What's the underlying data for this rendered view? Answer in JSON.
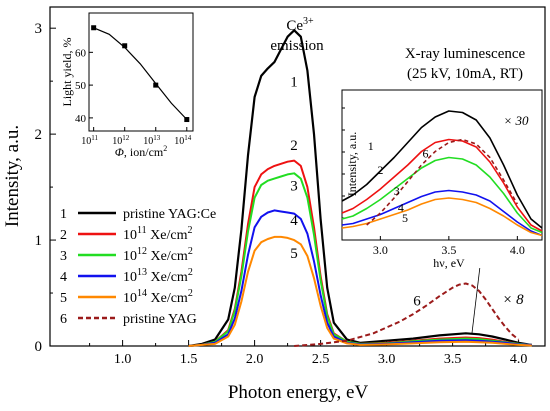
{
  "chart_data": [
    {
      "type": "line",
      "panel": "main",
      "xlabel": "Photon energy, eV",
      "ylabel": "Intensity, a.u.",
      "xlim": [
        0.45,
        4.2
      ],
      "ylim": [
        0,
        3.2
      ],
      "x_ticks": [
        {
          "v": 1.0,
          "label": "1.0"
        },
        {
          "v": 1.5,
          "label": "1.5"
        },
        {
          "v": 2.0,
          "label": "2.0"
        },
        {
          "v": 2.5,
          "label": "2.5"
        },
        {
          "v": 3.0,
          "label": "3.0"
        },
        {
          "v": 3.5,
          "label": "3.5"
        },
        {
          "v": 4.0,
          "label": "4.0"
        }
      ],
      "y_ticks": [
        {
          "v": 0,
          "label": "0"
        },
        {
          "v": 1,
          "label": "1"
        },
        {
          "v": 2,
          "label": "2"
        },
        {
          "v": 3,
          "label": "3"
        }
      ],
      "annotations": {
        "emission_ion": "Ce",
        "emission_charge": "3+",
        "emission_word": "emission",
        "scale_label": "× 8"
      },
      "curve_labels": [
        "1",
        "2",
        "3",
        "4",
        "5",
        "6"
      ],
      "legend": [
        {
          "num": "1",
          "text": "pristine YAG:Ce",
          "color": "#000000",
          "dash": false
        },
        {
          "num": "2",
          "base": "10",
          "exp": "11",
          "unit": " Xe/cm",
          "unit_exp": "2",
          "color": "#ee1111",
          "dash": false
        },
        {
          "num": "3",
          "base": "10",
          "exp": "12",
          "unit": " Xe/cm",
          "unit_exp": "2",
          "color": "#22dd22",
          "dash": false
        },
        {
          "num": "4",
          "base": "10",
          "exp": "13",
          "unit": " Xe/cm",
          "unit_exp": "2",
          "color": "#1111ee",
          "dash": false
        },
        {
          "num": "5",
          "base": "10",
          "exp": "14",
          "unit": " Xe/cm",
          "unit_exp": "2",
          "color": "#ff8800",
          "dash": false
        },
        {
          "num": "6",
          "text": "pristine YAG",
          "color": "#9b1b1b",
          "dash": true
        }
      ],
      "series": [
        {
          "id": "1",
          "color": "#000000",
          "width": 2.2,
          "dash": false,
          "x": [
            1.5,
            1.6,
            1.7,
            1.8,
            1.85,
            1.9,
            1.95,
            2.0,
            2.05,
            2.1,
            2.15,
            2.2,
            2.25,
            2.3,
            2.35,
            2.4,
            2.45,
            2.5,
            2.55,
            2.6,
            2.7,
            2.8,
            3.0,
            3.2,
            3.4,
            3.6,
            3.7,
            3.8,
            3.9,
            4.0,
            4.1
          ],
          "y": [
            0.0,
            0.02,
            0.06,
            0.25,
            0.55,
            1.1,
            1.8,
            2.35,
            2.55,
            2.62,
            2.68,
            2.8,
            2.92,
            2.98,
            2.92,
            2.6,
            2.0,
            1.2,
            0.55,
            0.22,
            0.06,
            0.03,
            0.05,
            0.07,
            0.1,
            0.12,
            0.11,
            0.09,
            0.06,
            0.03,
            0.01
          ]
        },
        {
          "id": "2",
          "color": "#ee1111",
          "width": 2,
          "dash": false,
          "x": [
            1.5,
            1.6,
            1.7,
            1.8,
            1.85,
            1.9,
            1.95,
            2.0,
            2.05,
            2.1,
            2.15,
            2.2,
            2.25,
            2.3,
            2.35,
            2.4,
            2.45,
            2.5,
            2.55,
            2.6,
            2.7,
            2.8,
            3.0,
            3.2,
            3.4,
            3.6,
            3.7,
            3.8,
            3.9,
            4.0,
            4.1
          ],
          "y": [
            0.0,
            0.01,
            0.04,
            0.15,
            0.35,
            0.7,
            1.15,
            1.5,
            1.62,
            1.67,
            1.7,
            1.72,
            1.74,
            1.75,
            1.7,
            1.5,
            1.12,
            0.66,
            0.3,
            0.12,
            0.04,
            0.02,
            0.03,
            0.05,
            0.07,
            0.08,
            0.075,
            0.06,
            0.04,
            0.02,
            0.01
          ]
        },
        {
          "id": "3",
          "color": "#22dd22",
          "width": 2,
          "dash": false,
          "x": [
            1.5,
            1.6,
            1.7,
            1.8,
            1.85,
            1.9,
            1.95,
            2.0,
            2.05,
            2.1,
            2.15,
            2.2,
            2.25,
            2.3,
            2.35,
            2.4,
            2.45,
            2.5,
            2.55,
            2.6,
            2.7,
            2.8,
            3.0,
            3.2,
            3.4,
            3.6,
            3.7,
            3.8,
            3.9,
            4.0,
            4.1
          ],
          "y": [
            0.0,
            0.01,
            0.04,
            0.14,
            0.33,
            0.66,
            1.08,
            1.4,
            1.52,
            1.56,
            1.58,
            1.6,
            1.62,
            1.63,
            1.58,
            1.4,
            1.05,
            0.62,
            0.28,
            0.11,
            0.04,
            0.02,
            0.025,
            0.045,
            0.06,
            0.07,
            0.065,
            0.05,
            0.035,
            0.02,
            0.01
          ]
        },
        {
          "id": "4",
          "color": "#1111ee",
          "width": 2,
          "dash": false,
          "x": [
            1.5,
            1.6,
            1.7,
            1.8,
            1.85,
            1.9,
            1.95,
            2.0,
            2.05,
            2.1,
            2.15,
            2.2,
            2.25,
            2.3,
            2.35,
            2.4,
            2.45,
            2.5,
            2.55,
            2.6,
            2.7,
            2.8,
            3.0,
            3.2,
            3.4,
            3.6,
            3.7,
            3.8,
            3.9,
            4.0,
            4.1
          ],
          "y": [
            0.0,
            0.01,
            0.03,
            0.11,
            0.26,
            0.52,
            0.86,
            1.12,
            1.22,
            1.26,
            1.28,
            1.27,
            1.26,
            1.25,
            1.2,
            1.06,
            0.8,
            0.48,
            0.22,
            0.09,
            0.03,
            0.015,
            0.02,
            0.035,
            0.05,
            0.055,
            0.05,
            0.04,
            0.03,
            0.015,
            0.01
          ]
        },
        {
          "id": "5",
          "color": "#ff8800",
          "width": 2,
          "dash": false,
          "x": [
            1.5,
            1.6,
            1.7,
            1.8,
            1.85,
            1.9,
            1.95,
            2.0,
            2.05,
            2.1,
            2.15,
            2.2,
            2.25,
            2.3,
            2.35,
            2.4,
            2.45,
            2.5,
            2.55,
            2.6,
            2.7,
            2.8,
            3.0,
            3.2,
            3.4,
            3.6,
            3.7,
            3.8,
            3.9,
            4.0,
            4.1
          ],
          "y": [
            0.0,
            0.01,
            0.02,
            0.09,
            0.2,
            0.42,
            0.7,
            0.9,
            0.98,
            1.01,
            1.03,
            1.03,
            1.02,
            1.0,
            0.96,
            0.85,
            0.64,
            0.38,
            0.17,
            0.07,
            0.025,
            0.01,
            0.015,
            0.025,
            0.035,
            0.04,
            0.035,
            0.03,
            0.02,
            0.01,
            0.005
          ]
        },
        {
          "id": "6",
          "color": "#9b1b1b",
          "width": 2,
          "dash": true,
          "x": [
            2.3,
            2.5,
            2.7,
            2.9,
            3.1,
            3.2,
            3.3,
            3.4,
            3.5,
            3.55,
            3.6,
            3.65,
            3.7,
            3.75,
            3.8,
            3.85,
            3.9,
            3.95,
            4.0
          ],
          "y": [
            0.0,
            0.02,
            0.05,
            0.12,
            0.23,
            0.3,
            0.38,
            0.47,
            0.55,
            0.58,
            0.59,
            0.57,
            0.52,
            0.44,
            0.35,
            0.26,
            0.18,
            0.11,
            0.06
          ]
        }
      ]
    },
    {
      "type": "scatter",
      "panel": "inset-left",
      "xlabel_symbol": "Φ",
      "xlabel_unit": ", ion/cm",
      "xlabel_exp": "2",
      "ylabel": "Light yield, %",
      "x_log": true,
      "xlim_log10": [
        10.85,
        14.2
      ],
      "ylim": [
        36,
        72
      ],
      "x_ticks": [
        {
          "exp": 11,
          "base": "10",
          "sup": "11"
        },
        {
          "exp": 12,
          "base": "10",
          "sup": "12"
        },
        {
          "exp": 13,
          "base": "10",
          "sup": "13"
        },
        {
          "exp": 14,
          "base": "10",
          "sup": "14"
        }
      ],
      "y_ticks": [
        {
          "v": 40,
          "label": "40"
        },
        {
          "v": 50,
          "label": "50"
        },
        {
          "v": 60,
          "label": "60"
        }
      ],
      "points": [
        {
          "x_log10": 11,
          "y": 67.5
        },
        {
          "x_log10": 12,
          "y": 62
        },
        {
          "x_log10": 13,
          "y": 50
        },
        {
          "x_log10": 14,
          "y": 39.5
        }
      ],
      "fit_curve": {
        "x_log10": [
          11.0,
          11.5,
          12.0,
          12.5,
          13.0,
          13.5,
          14.0
        ],
        "y": [
          67.5,
          65.5,
          61.5,
          56.5,
          50.5,
          44.5,
          39.5
        ]
      }
    },
    {
      "type": "line",
      "panel": "inset-right",
      "title_line1": "X-ray luminescence",
      "title_line2": "(25 kV, 10mA, RT)",
      "xlabel": "hν, eV",
      "ylabel": "Intensity, a.u.",
      "scale_label": "× 30",
      "xlim": [
        2.72,
        4.18
      ],
      "ylim": [
        0,
        1.0
      ],
      "x_ticks": [
        {
          "v": 3.0,
          "label": "3.0"
        },
        {
          "v": 3.5,
          "label": "3.5"
        },
        {
          "v": 4.0,
          "label": "4.0"
        }
      ],
      "curve_labels": [
        "1",
        "2",
        "3",
        "4",
        "5",
        "6"
      ],
      "series": [
        {
          "id": "1",
          "color": "#000000",
          "dash": false,
          "x": [
            2.72,
            2.8,
            2.9,
            3.0,
            3.1,
            3.2,
            3.3,
            3.4,
            3.5,
            3.6,
            3.7,
            3.8,
            3.9,
            4.0,
            4.1,
            4.18
          ],
          "y": [
            0.26,
            0.3,
            0.37,
            0.46,
            0.55,
            0.65,
            0.75,
            0.82,
            0.86,
            0.85,
            0.8,
            0.68,
            0.5,
            0.3,
            0.14,
            0.08
          ]
        },
        {
          "id": "2",
          "color": "#ee1111",
          "dash": false,
          "x": [
            2.72,
            2.8,
            2.9,
            3.0,
            3.1,
            3.2,
            3.3,
            3.4,
            3.5,
            3.6,
            3.7,
            3.8,
            3.9,
            4.0,
            4.1,
            4.18
          ],
          "y": [
            0.18,
            0.21,
            0.27,
            0.34,
            0.42,
            0.5,
            0.59,
            0.65,
            0.67,
            0.66,
            0.62,
            0.52,
            0.38,
            0.22,
            0.1,
            0.06
          ]
        },
        {
          "id": "3",
          "color": "#22dd22",
          "dash": false,
          "x": [
            2.72,
            2.8,
            2.9,
            3.0,
            3.1,
            3.2,
            3.3,
            3.4,
            3.5,
            3.6,
            3.7,
            3.8,
            3.9,
            4.0,
            4.1,
            4.18
          ],
          "y": [
            0.14,
            0.16,
            0.21,
            0.27,
            0.34,
            0.41,
            0.48,
            0.53,
            0.55,
            0.54,
            0.5,
            0.42,
            0.31,
            0.18,
            0.08,
            0.05
          ]
        },
        {
          "id": "4",
          "color": "#1111ee",
          "dash": false,
          "x": [
            2.72,
            2.8,
            2.9,
            3.0,
            3.1,
            3.2,
            3.3,
            3.4,
            3.5,
            3.6,
            3.7,
            3.8,
            3.9,
            4.0,
            4.1,
            4.18
          ],
          "y": [
            0.1,
            0.11,
            0.14,
            0.17,
            0.21,
            0.25,
            0.29,
            0.32,
            0.33,
            0.32,
            0.3,
            0.26,
            0.19,
            0.12,
            0.06,
            0.03
          ]
        },
        {
          "id": "5",
          "color": "#ff8800",
          "dash": false,
          "x": [
            2.72,
            2.8,
            2.9,
            3.0,
            3.1,
            3.2,
            3.3,
            3.4,
            3.5,
            3.6,
            3.7,
            3.8,
            3.9,
            4.0,
            4.1,
            4.18
          ],
          "y": [
            0.08,
            0.09,
            0.11,
            0.14,
            0.17,
            0.2,
            0.24,
            0.27,
            0.28,
            0.27,
            0.25,
            0.21,
            0.16,
            0.1,
            0.05,
            0.03
          ]
        },
        {
          "id": "6",
          "color": "#9b1b1b",
          "dash": true,
          "x": [
            2.9,
            3.0,
            3.1,
            3.2,
            3.3,
            3.4,
            3.5,
            3.6,
            3.7,
            3.8,
            3.9,
            4.0
          ],
          "y": [
            0.1,
            0.18,
            0.28,
            0.39,
            0.5,
            0.59,
            0.65,
            0.67,
            0.64,
            0.55,
            0.4,
            0.24
          ]
        }
      ]
    }
  ]
}
